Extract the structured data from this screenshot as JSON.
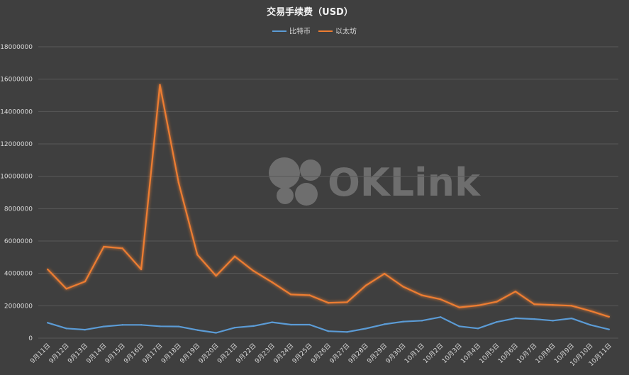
{
  "watermark": "OKLink",
  "chart_data": {
    "type": "line",
    "title": "交易手续费（USD）",
    "xlabel": "",
    "ylabel": "",
    "ylim": [
      0,
      18000000
    ],
    "yticks": [
      0,
      2000000,
      4000000,
      6000000,
      8000000,
      10000000,
      12000000,
      14000000,
      16000000,
      18000000
    ],
    "grid": true,
    "legend_position": "top-center",
    "categories": [
      "9月11日",
      "9月12日",
      "9月13日",
      "9月14日",
      "9月15日",
      "9月16日",
      "9月17日",
      "9月18日",
      "9月19日",
      "9月20日",
      "9月21日",
      "9月22日",
      "9月23日",
      "9月24日",
      "9月25日",
      "9月26日",
      "9月27日",
      "9月28日",
      "9月29日",
      "9月30日",
      "10月1日",
      "10月2日",
      "10月3日",
      "10月4日",
      "10月5日",
      "10月6日",
      "10月7日",
      "10月8日",
      "10月9日",
      "10月10日",
      "10月11日"
    ],
    "series": [
      {
        "name": "比特币",
        "color": "#5b9bd5",
        "values": [
          950000,
          600000,
          520000,
          720000,
          820000,
          820000,
          730000,
          720000,
          500000,
          330000,
          650000,
          750000,
          980000,
          830000,
          830000,
          430000,
          380000,
          590000,
          860000,
          1020000,
          1080000,
          1300000,
          730000,
          600000,
          1000000,
          1230000,
          1180000,
          1080000,
          1220000,
          820000,
          540000
        ]
      },
      {
        "name": "以太坊",
        "color": "#ed7d31",
        "values": [
          4250000,
          3050000,
          3500000,
          5650000,
          5550000,
          4250000,
          15650000,
          9600000,
          5150000,
          3850000,
          5050000,
          4150000,
          3450000,
          2700000,
          2650000,
          2180000,
          2220000,
          3250000,
          3980000,
          3180000,
          2650000,
          2400000,
          1900000,
          2020000,
          2250000,
          2880000,
          2100000,
          2050000,
          2000000,
          1680000,
          1320000
        ]
      }
    ]
  }
}
